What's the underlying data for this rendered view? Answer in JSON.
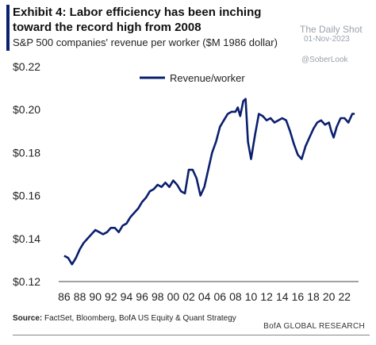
{
  "exhibit": {
    "title": "Exhibit 4: Labor efficiency has been inching toward the record high from 2008",
    "subtitle": "S&P 500 companies' revenue per worker ($M 1986 dollar)"
  },
  "watermark": {
    "name": "The Daily Shot",
    "date": "01-Nov-2023",
    "handle": "@SoberLook"
  },
  "source": {
    "label": "Source:",
    "text": "FactSet, Bloomberg, BofA US Equity & Quant Strategy"
  },
  "brand": "BofA GLOBAL RESEARCH",
  "chart_data": {
    "type": "line",
    "series": [
      {
        "name": "Revenue/worker",
        "color": "#0a1f6e",
        "x": [
          1986.0,
          1986.5,
          1987.0,
          1987.5,
          1988.0,
          1988.5,
          1989.0,
          1989.5,
          1990.0,
          1990.5,
          1991.0,
          1991.5,
          1992.0,
          1992.5,
          1993.0,
          1993.5,
          1994.0,
          1994.5,
          1995.0,
          1995.5,
          1996.0,
          1996.5,
          1997.0,
          1997.5,
          1998.0,
          1998.5,
          1999.0,
          1999.5,
          2000.0,
          2000.5,
          2001.0,
          2001.5,
          2002.0,
          2002.5,
          2003.0,
          2003.5,
          2004.0,
          2004.5,
          2005.0,
          2005.5,
          2006.0,
          2006.5,
          2007.0,
          2007.5,
          2008.0,
          2008.3,
          2008.6,
          2009.0,
          2009.3,
          2009.6,
          2010.0,
          2010.5,
          2011.0,
          2011.5,
          2012.0,
          2012.5,
          2013.0,
          2013.5,
          2014.0,
          2014.5,
          2015.0,
          2015.5,
          2016.0,
          2016.5,
          2017.0,
          2017.5,
          2018.0,
          2018.5,
          2019.0,
          2019.5,
          2020.0,
          2020.3,
          2020.6,
          2021.0,
          2021.5,
          2022.0,
          2022.5,
          2023.0,
          2023.3
        ],
        "values": [
          0.132,
          0.131,
          0.128,
          0.131,
          0.135,
          0.138,
          0.14,
          0.142,
          0.144,
          0.143,
          0.142,
          0.143,
          0.145,
          0.145,
          0.143,
          0.146,
          0.147,
          0.15,
          0.152,
          0.154,
          0.157,
          0.159,
          0.162,
          0.163,
          0.165,
          0.164,
          0.166,
          0.164,
          0.167,
          0.165,
          0.162,
          0.161,
          0.172,
          0.172,
          0.168,
          0.16,
          0.164,
          0.172,
          0.18,
          0.185,
          0.192,
          0.195,
          0.198,
          0.199,
          0.199,
          0.201,
          0.197,
          0.204,
          0.205,
          0.185,
          0.177,
          0.188,
          0.198,
          0.197,
          0.195,
          0.196,
          0.194,
          0.195,
          0.196,
          0.195,
          0.19,
          0.184,
          0.179,
          0.177,
          0.183,
          0.187,
          0.191,
          0.194,
          0.195,
          0.193,
          0.194,
          0.19,
          0.187,
          0.192,
          0.196,
          0.196,
          0.194,
          0.198,
          0.198
        ]
      }
    ],
    "xlim": [
      1985.7,
      2023.6
    ],
    "ylim": [
      0.12,
      0.22
    ],
    "yticks": [
      0.12,
      0.14,
      0.16,
      0.18,
      0.2,
      0.22
    ],
    "ytick_labels": [
      "$0.12",
      "$0.14",
      "$0.16",
      "$0.18",
      "$0.20",
      "$0.22"
    ],
    "xticks": [
      1986,
      1988,
      1990,
      1992,
      1994,
      1996,
      1998,
      2000,
      2002,
      2004,
      2006,
      2008,
      2010,
      2012,
      2014,
      2016,
      2018,
      2020,
      2022
    ],
    "xtick_labels": [
      "86",
      "88",
      "90",
      "92",
      "94",
      "96",
      "98",
      "00",
      "02",
      "04",
      "06",
      "08",
      "10",
      "12",
      "14",
      "16",
      "18",
      "20",
      "22"
    ],
    "title": "",
    "xlabel": "",
    "ylabel": "",
    "grid": false,
    "legend": "top-center"
  }
}
